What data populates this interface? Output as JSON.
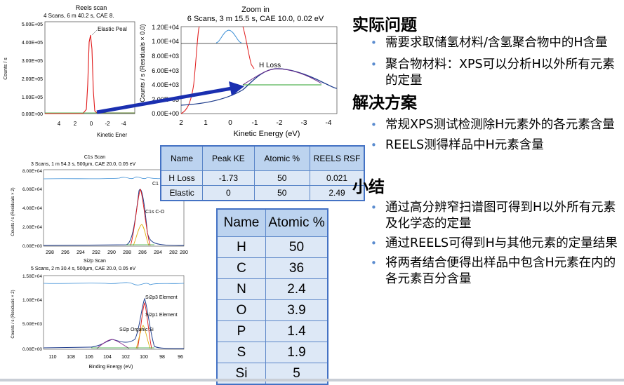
{
  "reels_scan": {
    "title": "Reels scan",
    "subtitle": "4 Scans,  6 m 40.2 s,  CAE 8.",
    "ylabel": "Counts / s",
    "xlabel": "Kinetic Ener",
    "peak_label": "Elastic Peal",
    "yticks": [
      "5.00E+05",
      "4.00E+05",
      "3.00E+05",
      "2.00E+05",
      "1.00E+05",
      "0.00E+00"
    ],
    "xticks": [
      "4",
      "2",
      "0",
      "-2",
      "-4"
    ]
  },
  "zoom": {
    "title": "Zoom in",
    "subtitle": "6 Scans,  3 m 15.5 s,  CAE 10.0,  0.02 eV",
    "ylabel": "Counts / s  (Residuals × 0.0)",
    "xlabel": "Kinetic Energy (eV)",
    "peak_label": "H Loss",
    "yticks": [
      "1.20E+04",
      "1.00E+04",
      "8.00E+03",
      "6.00E+03",
      "4.00E+03",
      "2.00E+03",
      "0.00E+00"
    ],
    "xticks": [
      "2",
      "1",
      "0",
      "-1",
      "-2",
      "-3",
      "-4"
    ]
  },
  "c1s": {
    "title": "C1s Scan",
    "subtitle": "3 Scans,  1 m 54.3 s,  500μm,  CAE 20.0,  0.05 eV",
    "ylabel": "Counts / s  (Residuals × 2)",
    "peak_labels": [
      "C1",
      "C1s C-O"
    ],
    "yticks": [
      "8.00E+04",
      "6.00E+04",
      "4.00E+04",
      "2.00E+04",
      "0.00E+00"
    ],
    "xticks": [
      "298",
      "296",
      "294",
      "292",
      "290",
      "288",
      "286",
      "284",
      "282",
      "280"
    ]
  },
  "si2p": {
    "title": "Si2p Scan",
    "subtitle": "5 Scans,  2 m 30.4 s,  500μm,  CAE 20.0,  0.05 eV",
    "ylabel": "Counts / s  (Residuals × 2)",
    "xlabel": "Binding Energy (eV)",
    "peak_labels": [
      "Si2p3 Element",
      "Si2p1 Element",
      "Si2p Organic Si"
    ],
    "yticks": [
      "1.50E+04",
      "1.00E+04",
      "5.00E+03",
      "0.00E+00"
    ],
    "xticks": [
      "110",
      "108",
      "106",
      "104",
      "102",
      "100",
      "98",
      "96"
    ]
  },
  "reels_table": {
    "headers": [
      "Name",
      "Peak KE",
      "Atomic %",
      "REELS RSF"
    ],
    "rows": [
      [
        "H Loss",
        "-1.73",
        "50",
        "0.021"
      ],
      [
        "Elastic",
        "0",
        "50",
        "2.49"
      ]
    ]
  },
  "atomic_table": {
    "headers": [
      "Name",
      "Atomic %"
    ],
    "rows": [
      [
        "H",
        "50"
      ],
      [
        "C",
        "36"
      ],
      [
        "N",
        "2.4"
      ],
      [
        "O",
        "3.9"
      ],
      [
        "P",
        "1.4"
      ],
      [
        "S",
        "1.9"
      ],
      [
        "Si",
        "5"
      ]
    ]
  },
  "sections": [
    {
      "title": "实际问题",
      "bullets": [
        "需要求取储氢材料/含氢聚合物中的H含量",
        "聚合物材料：XPS可以分析H以外所有元素的定量"
      ]
    },
    {
      "title": "解决方案",
      "bullets": [
        "常规XPS测试检测除H元素外的各元素含量",
        "REELS测得样品中H元素含量"
      ]
    },
    {
      "title": "小结",
      "bullets": [
        "通过高分辨窄扫谱图可得到H以外所有元素及化学态的定量",
        "通过REELS可得到H与其他元素的定量结果",
        "将两者结合便得出样品中包含H元素在内的各元素百分含量"
      ]
    }
  ],
  "colors": {
    "arrow": "#1a2fb0",
    "table_border": "#4472c4",
    "table_header": "#bcd3ef",
    "table_cell": "#dde8f6",
    "bullet": "#5b8ccf"
  }
}
